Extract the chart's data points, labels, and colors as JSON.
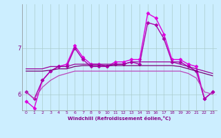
{
  "xlabel": "Windchill (Refroidissement éolien,°C)",
  "background_color": "#cceeff",
  "grid_color": "#aacccc",
  "text_color": "#880088",
  "xmin": 0,
  "xmax": 23,
  "ymin": 5.65,
  "ymax": 7.95,
  "yticks": [
    6,
    7
  ],
  "xticks": [
    0,
    1,
    2,
    3,
    4,
    5,
    6,
    7,
    8,
    9,
    10,
    11,
    12,
    13,
    14,
    15,
    16,
    17,
    18,
    19,
    20,
    21,
    22,
    23
  ],
  "series": [
    {
      "x": [
        0,
        1,
        2,
        3,
        4,
        5,
        6,
        7,
        8,
        9,
        10,
        11,
        12,
        13,
        14,
        15,
        16,
        17,
        18,
        19,
        20,
        21,
        22,
        23
      ],
      "y": [
        5.85,
        5.7,
        6.3,
        6.5,
        6.6,
        6.65,
        7.05,
        6.8,
        6.65,
        6.65,
        6.6,
        6.7,
        6.7,
        6.75,
        6.75,
        7.75,
        7.65,
        7.3,
        6.75,
        6.75,
        6.65,
        6.6,
        5.9,
        6.05
      ],
      "marker": "D",
      "markersize": 2.5,
      "linewidth": 1.0,
      "color": "#dd00dd"
    },
    {
      "x": [
        0,
        1,
        2,
        3,
        4,
        5,
        6,
        7,
        8,
        9,
        10,
        11,
        12,
        13,
        14,
        15,
        16,
        17,
        18,
        19,
        20,
        21,
        22,
        23
      ],
      "y": [
        6.05,
        5.9,
        6.3,
        6.5,
        6.6,
        6.6,
        7.0,
        6.75,
        6.6,
        6.6,
        6.6,
        6.65,
        6.65,
        6.7,
        6.65,
        7.55,
        7.5,
        7.2,
        6.7,
        6.7,
        6.6,
        6.5,
        5.9,
        6.05
      ],
      "marker": "D",
      "markersize": 2.5,
      "linewidth": 1.0,
      "color": "#aa00aa"
    },
    {
      "x": [
        0,
        1,
        2,
        3,
        4,
        5,
        6,
        7,
        8,
        9,
        10,
        11,
        12,
        13,
        14,
        15,
        16,
        17,
        18,
        19,
        20,
        21,
        22,
        23
      ],
      "y": [
        6.55,
        6.55,
        6.55,
        6.6,
        6.6,
        6.6,
        6.65,
        6.65,
        6.65,
        6.65,
        6.65,
        6.65,
        6.65,
        6.7,
        6.7,
        6.7,
        6.7,
        6.7,
        6.7,
        6.65,
        6.6,
        6.55,
        6.5,
        6.45
      ],
      "marker": null,
      "markersize": 0,
      "linewidth": 0.9,
      "color": "#990099"
    },
    {
      "x": [
        0,
        1,
        2,
        3,
        4,
        5,
        6,
        7,
        8,
        9,
        10,
        11,
        12,
        13,
        14,
        15,
        16,
        17,
        18,
        19,
        20,
        21,
        22,
        23
      ],
      "y": [
        6.5,
        6.5,
        6.5,
        6.52,
        6.55,
        6.55,
        6.6,
        6.62,
        6.62,
        6.62,
        6.62,
        6.62,
        6.62,
        6.62,
        6.62,
        6.62,
        6.62,
        6.62,
        6.62,
        6.6,
        6.55,
        6.5,
        6.45,
        6.4
      ],
      "marker": null,
      "markersize": 0,
      "linewidth": 0.9,
      "color": "#770077"
    },
    {
      "x": [
        0,
        1,
        2,
        3,
        4,
        5,
        6,
        7,
        8,
        9,
        10,
        11,
        12,
        13,
        14,
        15,
        16,
        17,
        18,
        19,
        20,
        21,
        22,
        23
      ],
      "y": [
        6.05,
        5.9,
        6.15,
        6.3,
        6.4,
        6.45,
        6.5,
        6.5,
        6.5,
        6.5,
        6.5,
        6.5,
        6.5,
        6.5,
        6.5,
        6.5,
        6.5,
        6.5,
        6.5,
        6.5,
        6.45,
        6.35,
        6.05,
        6.0
      ],
      "marker": null,
      "markersize": 0,
      "linewidth": 0.9,
      "color": "#bb44bb"
    }
  ]
}
